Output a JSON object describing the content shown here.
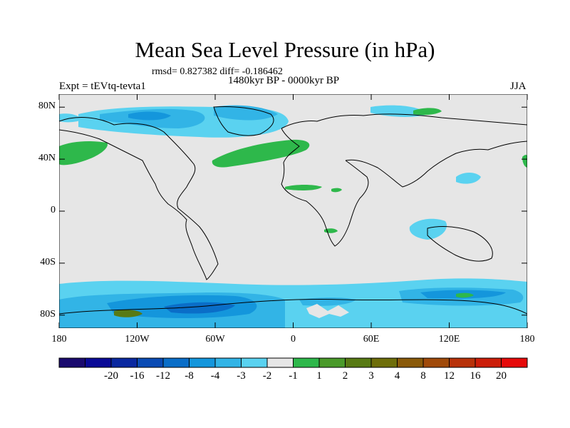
{
  "title": "Mean Sea Level Pressure (in hPa)",
  "stats": "rmsd= 0.827382 diff= -0.186462",
  "experiment": "Expt = tEVtq-tevta1",
  "period": "1480kyr BP - 0000kyr BP",
  "season": "JJA",
  "map": {
    "land_color": "#e6e6e6",
    "lon_range": [
      -180,
      180
    ],
    "lat_range": [
      -90,
      90
    ],
    "lat_labels": [
      "80N",
      "40N",
      "0",
      "40S",
      "80S"
    ],
    "lon_labels": [
      "180",
      "120W",
      "60W",
      "0",
      "60E",
      "120E",
      "180"
    ]
  },
  "colorbar": {
    "colors": [
      "#1a0a6e",
      "#0a0a96",
      "#0a28a0",
      "#0a4bb4",
      "#0a6ec8",
      "#1496dc",
      "#32b4e6",
      "#5ad2f0",
      "#e6e6e6",
      "#2eb84b",
      "#4a9a2a",
      "#587a14",
      "#6e6e0a",
      "#8a5a0a",
      "#a04a0a",
      "#b8320a",
      "#cc1e0a",
      "#e60a0a"
    ],
    "labels": [
      "-20",
      "-16",
      "-12",
      "-8",
      "-4",
      "-3",
      "-2",
      "-1",
      "1",
      "2",
      "3",
      "4",
      "8",
      "12",
      "16",
      "20"
    ]
  }
}
